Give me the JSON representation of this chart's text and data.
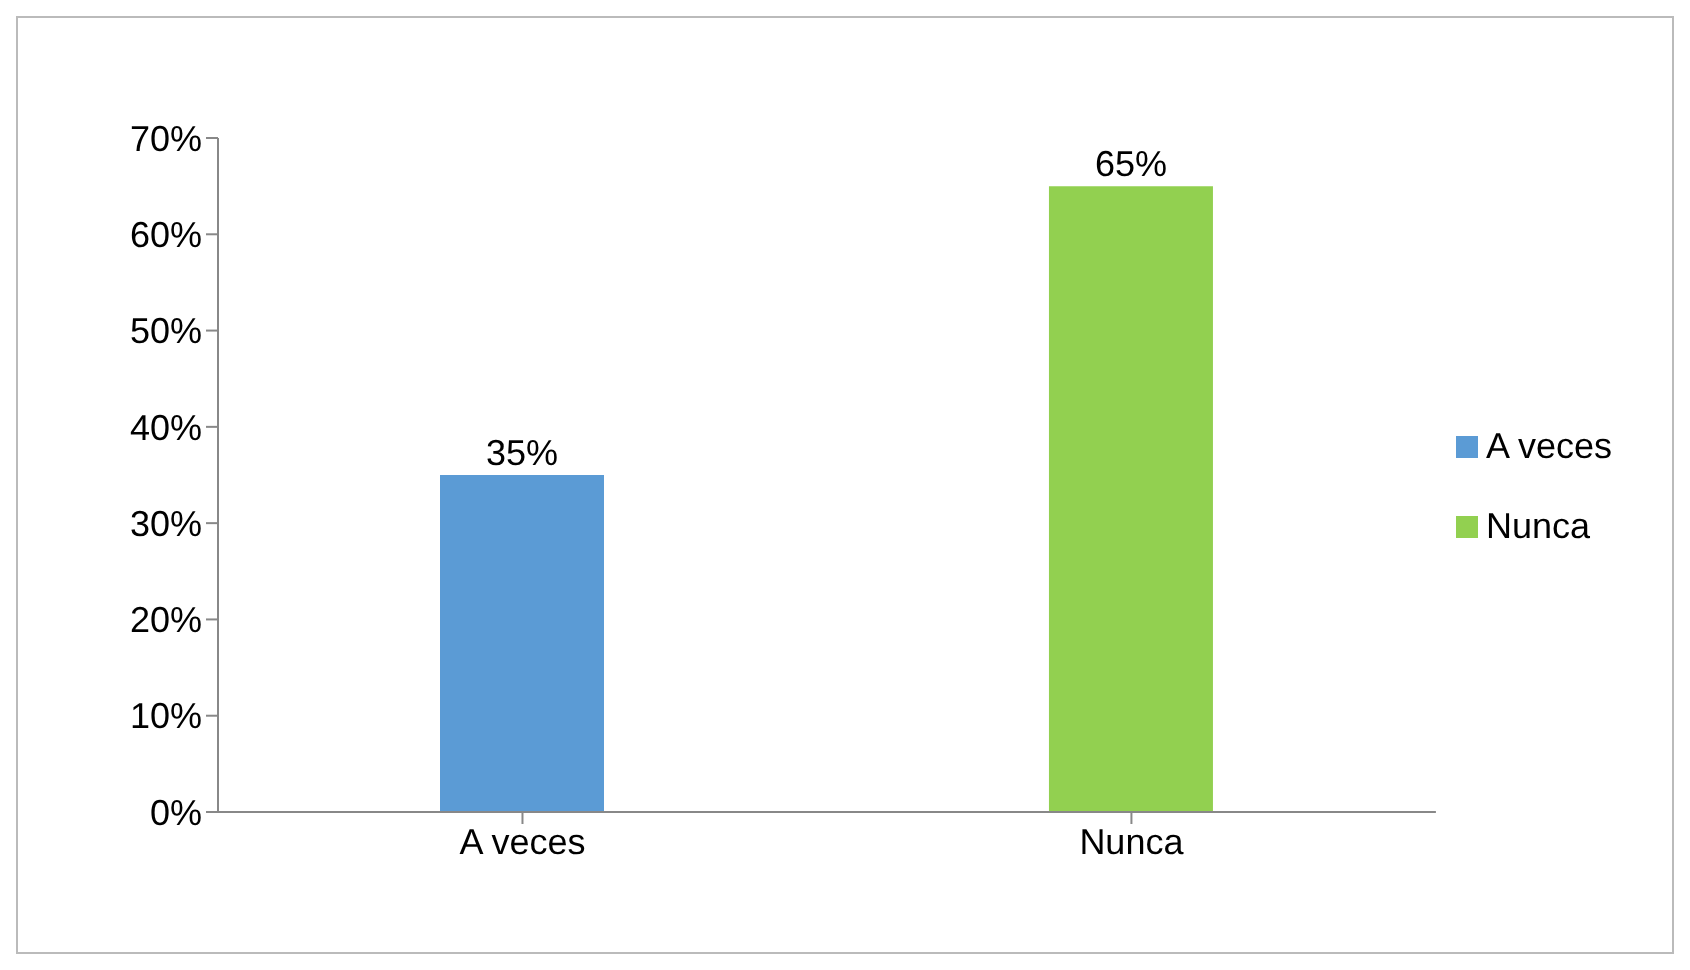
{
  "chart_data": {
    "type": "bar",
    "categories": [
      "A veces",
      "Nunca"
    ],
    "series": [
      {
        "name": "A veces",
        "color": "#5b9bd5",
        "values": [
          35,
          null
        ],
        "value_labels": [
          "35%",
          null
        ]
      },
      {
        "name": "Nunca",
        "color": "#92d050",
        "values": [
          null,
          65
        ],
        "value_labels": [
          null,
          "65%"
        ]
      }
    ],
    "ylim": [
      0,
      70
    ],
    "yticks": [
      {
        "value": 0,
        "label": "0%"
      },
      {
        "value": 10,
        "label": "10%"
      },
      {
        "value": 20,
        "label": "20%"
      },
      {
        "value": 30,
        "label": "30%"
      },
      {
        "value": 40,
        "label": "40%"
      },
      {
        "value": 50,
        "label": "50%"
      },
      {
        "value": 60,
        "label": "60%"
      },
      {
        "value": 70,
        "label": "70%"
      }
    ],
    "legend": "right"
  }
}
